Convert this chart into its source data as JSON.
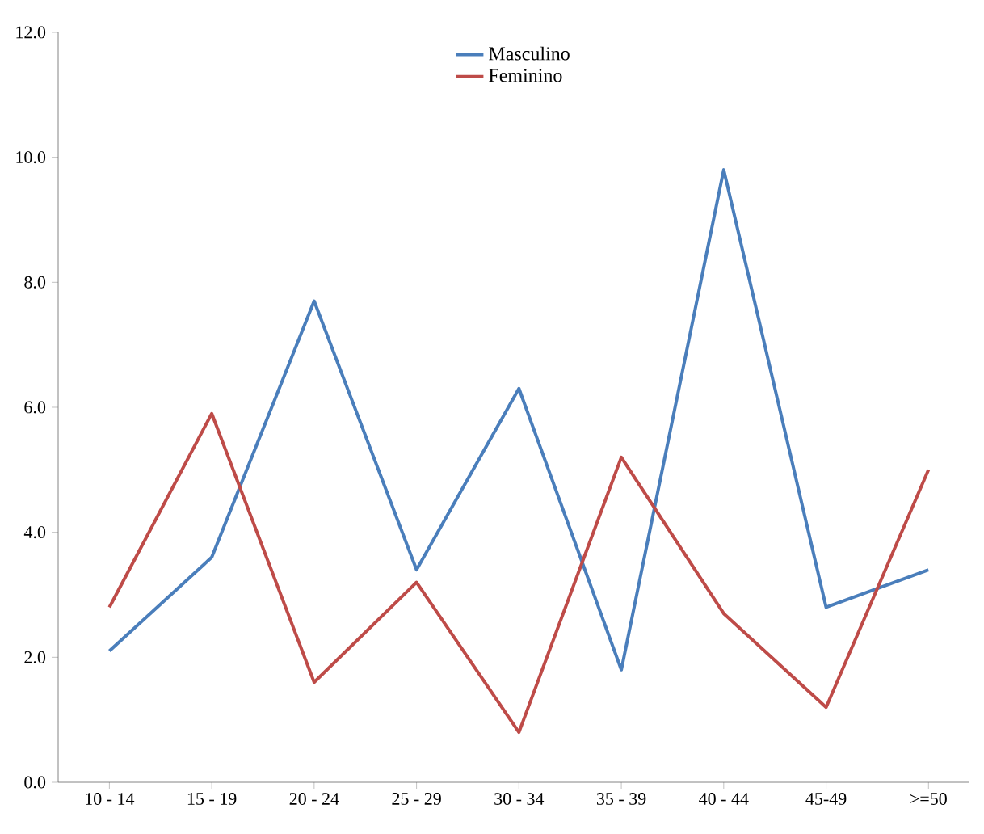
{
  "chart_data": {
    "type": "line",
    "categories": [
      "10 - 14",
      "15 - 19",
      "20 - 24",
      "25 - 29",
      "30 - 34",
      "35 - 39",
      "40 - 44",
      "45-49",
      ">=50"
    ],
    "series": [
      {
        "name": "Masculino",
        "color": "#4a7ebb",
        "values": [
          2.1,
          3.6,
          7.7,
          3.4,
          6.3,
          1.8,
          9.8,
          2.8,
          3.4
        ]
      },
      {
        "name": "Feminino",
        "color": "#be4b48",
        "values": [
          2.8,
          5.9,
          1.6,
          3.2,
          0.8,
          5.2,
          2.7,
          1.2,
          5.0
        ]
      }
    ],
    "ylim": [
      0,
      12
    ],
    "yticks": [
      {
        "value": 0,
        "label": "0.0"
      },
      {
        "value": 2,
        "label": "2.0"
      },
      {
        "value": 4,
        "label": "4.0"
      },
      {
        "value": 6,
        "label": "6.0"
      },
      {
        "value": 8,
        "label": "8.0"
      },
      {
        "value": 10,
        "label": "10.0"
      },
      {
        "value": 12,
        "label": "12.0"
      }
    ],
    "legend": "top",
    "grid": false,
    "marker": "none",
    "line_style": "solid"
  }
}
